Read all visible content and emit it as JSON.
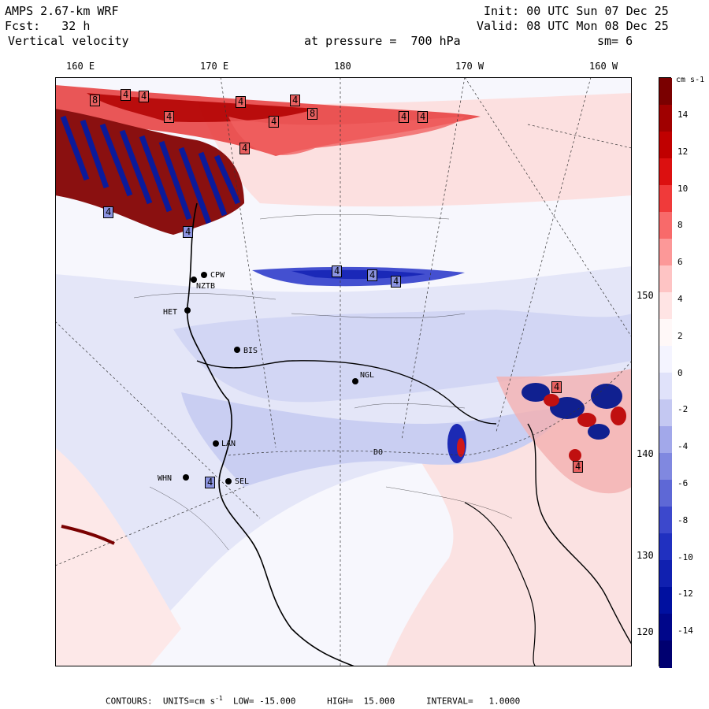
{
  "header": {
    "model": "AMPS 2.67-km WRF",
    "fcst": "Fcst:   32 h",
    "field": "Vertical velocity",
    "init": "Init: 00 UTC Sun 07 Dec 25",
    "valid": "Valid: 08 UTC Mon 08 Dec 25",
    "pressure": "at pressure =  700 hPa",
    "smoothing": "sm= 6"
  },
  "lon_labels": [
    "160 E",
    "170 E",
    "180",
    "170 W",
    "160 W"
  ],
  "lat_labels": [
    "150 W",
    "140 W",
    "130 W",
    "120 W"
  ],
  "stations": [
    "CPW",
    "NZTB",
    "HET",
    "BIS",
    "LAN",
    "SEL",
    "WHN",
    "NGL",
    "DO"
  ],
  "contour_labels": [
    "8",
    "4",
    "4",
    "4",
    "4",
    "4",
    "4",
    "4",
    "4",
    "4",
    "8",
    "4",
    "4",
    "4",
    "4",
    "4",
    "4",
    "4",
    "4"
  ],
  "colorbar": {
    "units": "cm s-1",
    "ticks": [
      "14",
      "12",
      "10",
      "8",
      "6",
      "4",
      "2",
      "0",
      "-2",
      "-4",
      "-6",
      "-8",
      "-10",
      "-12",
      "-14"
    ],
    "colors": [
      "#7a0000",
      "#a00000",
      "#c00000",
      "#dc1010",
      "#f03a3a",
      "#f86a6a",
      "#fc9898",
      "#fec4c4",
      "#ffe4e4",
      "#fff8f8",
      "#f4f4ff",
      "#e0e2fa",
      "#c4c8f2",
      "#a2a8ea",
      "#8088e0",
      "#5e68d6",
      "#3c48cc",
      "#2030c0",
      "#1020b0",
      "#0010a0",
      "#00068a",
      "#000070"
    ]
  },
  "footer": {
    "prefix": "CONTOURS:  UNITS=cm s",
    "sup": "-1",
    "rest": "  LOW= -15.000      HIGH=  15.000      INTERVAL=   1.0000"
  },
  "colors": {
    "red": "#d01818",
    "blue": "#1828c8",
    "land_pink": "#fbd4d4",
    "pale_blue": "#d6dcf6"
  }
}
